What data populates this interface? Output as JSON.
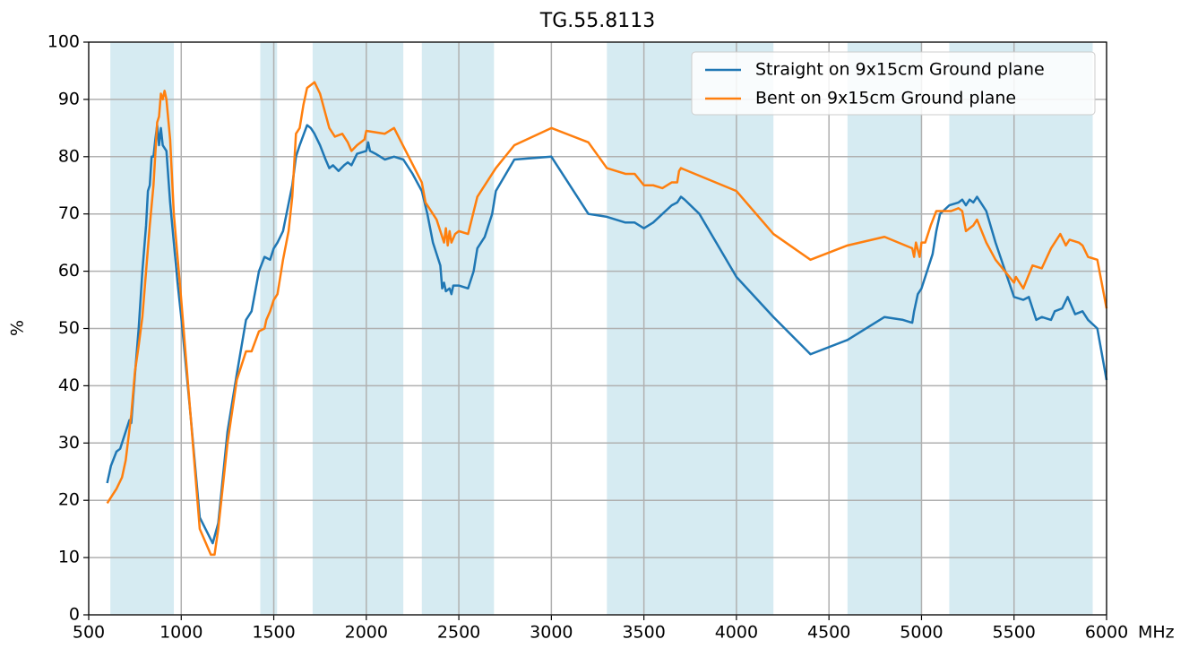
{
  "chart_data": {
    "type": "line",
    "title": "TG.55.8113",
    "xlabel": "MHz",
    "ylabel": "%",
    "xlim": [
      500,
      6000
    ],
    "ylim": [
      0,
      100
    ],
    "xticks": [
      500,
      1000,
      1500,
      2000,
      2500,
      3000,
      3500,
      4000,
      4500,
      5000,
      5500,
      6000
    ],
    "yticks": [
      0,
      10,
      20,
      30,
      40,
      50,
      60,
      70,
      80,
      90,
      100
    ],
    "grid": true,
    "legend": "upper right",
    "bands": [
      [
        617,
        960
      ],
      [
        1427,
        1518
      ],
      [
        1710,
        2200
      ],
      [
        2300,
        2690
      ],
      [
        3300,
        4200
      ],
      [
        4600,
        5000
      ],
      [
        5150,
        5925
      ]
    ],
    "band_color": "#add8e6",
    "series": [
      {
        "name": "Straight on 9x15cm Ground plane",
        "color": "#1f77b4",
        "x": [
          600,
          620,
          650,
          670,
          700,
          720,
          730,
          750,
          770,
          790,
          810,
          820,
          830,
          840,
          850,
          860,
          870,
          880,
          890,
          900,
          920,
          940,
          960,
          980,
          1000,
          1050,
          1100,
          1170,
          1200,
          1250,
          1300,
          1350,
          1380,
          1420,
          1450,
          1480,
          1500,
          1520,
          1550,
          1600,
          1620,
          1640,
          1680,
          1700,
          1720,
          1750,
          1780,
          1800,
          1820,
          1850,
          1880,
          1900,
          1920,
          1950,
          2000,
          2010,
          2020,
          2050,
          2100,
          2150,
          2200,
          2250,
          2300,
          2330,
          2360,
          2400,
          2410,
          2420,
          2430,
          2450,
          2460,
          2470,
          2500,
          2550,
          2580,
          2600,
          2640,
          2680,
          2700,
          2800,
          3000,
          3200,
          3300,
          3400,
          3450,
          3500,
          3550,
          3600,
          3650,
          3680,
          3700,
          3720,
          3800,
          4000,
          4200,
          4400,
          4600,
          4800,
          4900,
          4950,
          4960,
          4980,
          5000,
          5030,
          5060,
          5080,
          5100,
          5150,
          5200,
          5220,
          5240,
          5260,
          5280,
          5300,
          5350,
          5400,
          5500,
          5550,
          5580,
          5600,
          5620,
          5650,
          5700,
          5720,
          5760,
          5790,
          5830,
          5870,
          5900,
          5950,
          6000
        ],
        "values": [
          23,
          26,
          28.5,
          29,
          32,
          34,
          33.5,
          42,
          50,
          60,
          68,
          74,
          75,
          80,
          80,
          83,
          85.5,
          82,
          85,
          82,
          81,
          72,
          65,
          58,
          52,
          35,
          17,
          12.5,
          16,
          32,
          42,
          51.5,
          53,
          60,
          62.5,
          62,
          64,
          65,
          67,
          75,
          80,
          82,
          85.5,
          85,
          84,
          82,
          79.5,
          78,
          78.5,
          77.5,
          78.5,
          79,
          78.5,
          80.5,
          81,
          82.5,
          81,
          80.5,
          79.5,
          80,
          79.5,
          77,
          74,
          70,
          65,
          61,
          57,
          58,
          56.5,
          57,
          56,
          57.5,
          57.5,
          57,
          60,
          64,
          66,
          70,
          74,
          79.5,
          80,
          70,
          69.5,
          68.5,
          68.5,
          67.5,
          68.5,
          70,
          71.5,
          72,
          73,
          72.5,
          70,
          59,
          52,
          45.5,
          48,
          52,
          51.5,
          51,
          53,
          56,
          57,
          60,
          63,
          67,
          70,
          71.5,
          72,
          72.5,
          71.5,
          72.5,
          72,
          73,
          70.5,
          65,
          55.5,
          55,
          55.5,
          53.5,
          51.5,
          52,
          51.5,
          53,
          53.5,
          55.5,
          52.5,
          53,
          51.5,
          50,
          41
        ]
      },
      {
        "name": "Bent on 9x15cm Ground plane",
        "color": "#ff7f0e",
        "x": [
          600,
          650,
          680,
          700,
          730,
          750,
          770,
          790,
          810,
          830,
          850,
          870,
          880,
          890,
          900,
          910,
          920,
          940,
          960,
          1000,
          1050,
          1100,
          1160,
          1180,
          1200,
          1250,
          1300,
          1350,
          1380,
          1420,
          1450,
          1460,
          1480,
          1500,
          1520,
          1550,
          1580,
          1600,
          1620,
          1640,
          1660,
          1680,
          1720,
          1750,
          1800,
          1830,
          1870,
          1900,
          1920,
          1950,
          1990,
          2000,
          2100,
          2150,
          2300,
          2320,
          2380,
          2420,
          2430,
          2440,
          2450,
          2460,
          2480,
          2500,
          2550,
          2600,
          2700,
          2800,
          3000,
          3200,
          3300,
          3400,
          3450,
          3500,
          3550,
          3600,
          3650,
          3680,
          3690,
          3700,
          4000,
          4200,
          4400,
          4600,
          4800,
          4950,
          4960,
          4970,
          4990,
          5000,
          5020,
          5030,
          5050,
          5080,
          5120,
          5160,
          5200,
          5220,
          5240,
          5280,
          5300,
          5350,
          5400,
          5500,
          5510,
          5550,
          5600,
          5650,
          5700,
          5750,
          5780,
          5800,
          5850,
          5870,
          5900,
          5950,
          6000
        ],
        "values": [
          19.5,
          22,
          24,
          27,
          35,
          42.5,
          47,
          52,
          60,
          68,
          75,
          86,
          87,
          91,
          90,
          91.5,
          90,
          83,
          70,
          55,
          35,
          15,
          10.5,
          10.5,
          15,
          30,
          41,
          46,
          46,
          49.5,
          50,
          51.5,
          53,
          55,
          56,
          62,
          67,
          73,
          84,
          85,
          89,
          92,
          93,
          91,
          85,
          83.5,
          84,
          82.5,
          81,
          82,
          83,
          84.5,
          84,
          85,
          75.5,
          72,
          69,
          65,
          67.5,
          64.5,
          67,
          65,
          66.5,
          67,
          66.5,
          73,
          78,
          82,
          85,
          82.5,
          78,
          77,
          77,
          75,
          75,
          74.5,
          75.5,
          75.5,
          77.5,
          78,
          74,
          66.5,
          62,
          64.5,
          66,
          64,
          62.5,
          65,
          62.5,
          65,
          65,
          66,
          68,
          70.5,
          70.5,
          70.5,
          71,
          70.5,
          67,
          68,
          69,
          65,
          62,
          58,
          59,
          57,
          61,
          60.5,
          64,
          66.5,
          64.5,
          65.5,
          65,
          64.5,
          62.5,
          62,
          53.5
        ]
      }
    ]
  }
}
